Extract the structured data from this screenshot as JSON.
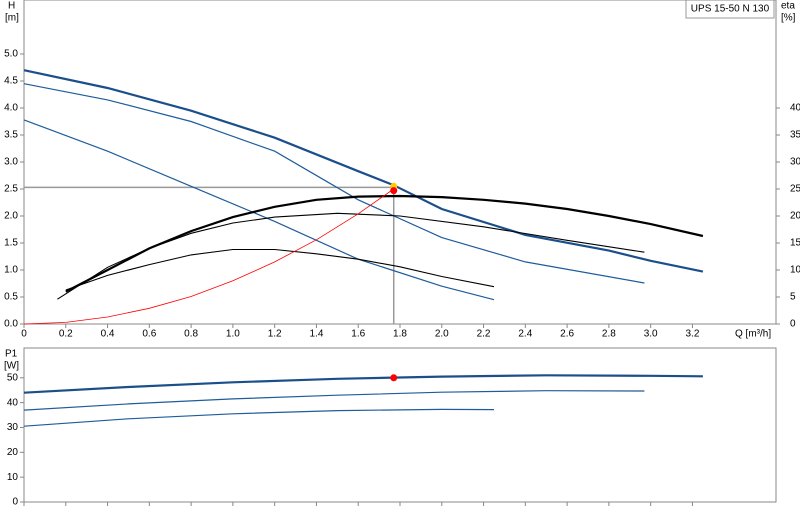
{
  "chart_data": [
    {
      "type": "line",
      "title": "UPS 15-50 N 130",
      "y_label": "H",
      "y_unit": "[m]",
      "y2_label": "eta",
      "y2_unit": "[%]",
      "x_label": "Q [m³/h]",
      "xlim": [
        0,
        3.6
      ],
      "xticks": [
        0,
        0.2,
        0.4,
        0.6,
        0.8,
        {
          "value": 1,
          "label": "1.0"
        },
        1.2,
        1.4,
        1.6,
        1.8,
        {
          "value": 2,
          "label": "2.0"
        },
        2.2,
        2.4,
        2.6,
        2.8,
        {
          "value": 3,
          "label": "3.0"
        },
        3.2
      ],
      "ylim": [
        0,
        6
      ],
      "yticks": [
        {
          "value": 0,
          "label": "0.0"
        },
        0.5,
        {
          "value": 1,
          "label": "1.0"
        },
        1.5,
        {
          "value": 2,
          "label": "2.0"
        },
        2.5,
        {
          "value": 3,
          "label": "3.0"
        },
        3.5,
        {
          "value": 4,
          "label": "4.0"
        },
        4.5,
        {
          "value": 5,
          "label": "5.0"
        }
      ],
      "y2lim": [
        0,
        60
      ],
      "y2ticks": [
        0,
        5,
        10,
        15,
        20,
        25,
        30,
        35,
        40
      ],
      "series": [
        {
          "color": "#1b4f8c",
          "linewidth": 2.2,
          "x": [
            0,
            0.4,
            0.8,
            1.2,
            1.6,
            1.77,
            2.0,
            2.4,
            2.8,
            3.0,
            3.25
          ],
          "values": [
            4.7,
            4.37,
            3.95,
            3.45,
            2.83,
            2.57,
            2.13,
            1.65,
            1.36,
            1.17,
            0.97
          ]
        },
        {
          "color": "#1f5c9c",
          "linewidth": 1.2,
          "x": [
            0,
            0.4,
            0.8,
            1.2,
            1.6,
            2.0,
            2.4,
            2.97
          ],
          "values": [
            4.45,
            4.15,
            3.75,
            3.2,
            2.3,
            1.6,
            1.15,
            0.76
          ]
        },
        {
          "color": "#1f5c9c",
          "linewidth": 1.2,
          "x": [
            0,
            0.4,
            0.8,
            1.2,
            1.6,
            2.0,
            2.25
          ],
          "values": [
            3.78,
            3.2,
            2.55,
            1.9,
            1.2,
            0.7,
            0.45
          ]
        },
        {
          "color": "#000000",
          "linewidth": 2.2,
          "axis": "y2",
          "x": [
            0.2,
            0.4,
            0.6,
            0.8,
            1.0,
            1.2,
            1.4,
            1.6,
            1.8,
            2.0,
            2.2,
            2.4,
            2.6,
            2.8,
            3.0,
            3.25
          ],
          "values": [
            6,
            10,
            14,
            17.2,
            19.8,
            21.7,
            23,
            23.6,
            23.7,
            23.5,
            23,
            22.3,
            21.3,
            20,
            18.5,
            16.3
          ]
        },
        {
          "color": "#000000",
          "linewidth": 1.1,
          "axis": "y2",
          "x": [
            0.16,
            0.4,
            0.6,
            0.8,
            1.0,
            1.2,
            1.5,
            1.8,
            2.2,
            2.6,
            2.97
          ],
          "values": [
            4.6,
            10.5,
            14,
            16.8,
            18.7,
            19.8,
            20.5,
            20,
            18,
            15.5,
            13.3
          ]
        },
        {
          "color": "#000000",
          "linewidth": 1.1,
          "axis": "y2",
          "x": [
            0.2,
            0.4,
            0.6,
            0.8,
            1.0,
            1.2,
            1.4,
            1.6,
            1.8,
            2.0,
            2.25
          ],
          "values": [
            6.3,
            9,
            11,
            12.8,
            13.8,
            13.8,
            13,
            12,
            10.6,
            8.8,
            6.9
          ]
        },
        {
          "color": "#ff0000",
          "linewidth": 0.8,
          "x": [
            0,
            0.2,
            0.4,
            0.6,
            0.8,
            1.0,
            1.2,
            1.4,
            1.6,
            1.77
          ],
          "values": [
            0,
            0.03,
            0.13,
            0.29,
            0.51,
            0.8,
            1.15,
            1.56,
            2.04,
            2.5
          ]
        }
      ],
      "reference_lines": {
        "x": 1.77,
        "y": 2.53,
        "color": "#999999"
      },
      "points": [
        {
          "x": 1.77,
          "y": 2.55,
          "color": "#ffcc00"
        },
        {
          "x": 1.77,
          "y": 2.47,
          "color": "#ff0000"
        }
      ]
    },
    {
      "type": "line",
      "y_label": "P1",
      "y_unit": "[W]",
      "xlim": [
        0,
        3.6
      ],
      "ylim": [
        0,
        62
      ],
      "yticks": [
        0,
        10,
        20,
        30,
        40,
        50
      ],
      "series": [
        {
          "color": "#1b4f8c",
          "linewidth": 2.2,
          "x": [
            0,
            0.5,
            1.0,
            1.5,
            2.0,
            2.5,
            3.0,
            3.25
          ],
          "values": [
            44,
            46.3,
            48.2,
            49.6,
            50.5,
            51,
            50.8,
            50.6
          ]
        },
        {
          "color": "#1f5c9c",
          "linewidth": 1.2,
          "x": [
            0,
            0.5,
            1.0,
            1.5,
            2.0,
            2.5,
            2.97
          ],
          "values": [
            37,
            39.5,
            41.5,
            43,
            44.2,
            44.8,
            44.7
          ]
        },
        {
          "color": "#1f5c9c",
          "linewidth": 1.2,
          "x": [
            0,
            0.5,
            1.0,
            1.5,
            2.0,
            2.25
          ],
          "values": [
            30.5,
            33.5,
            35.5,
            36.8,
            37.3,
            37.2
          ]
        }
      ],
      "points": [
        {
          "x": 1.77,
          "y": 50,
          "color": "#ff0000"
        }
      ]
    }
  ]
}
